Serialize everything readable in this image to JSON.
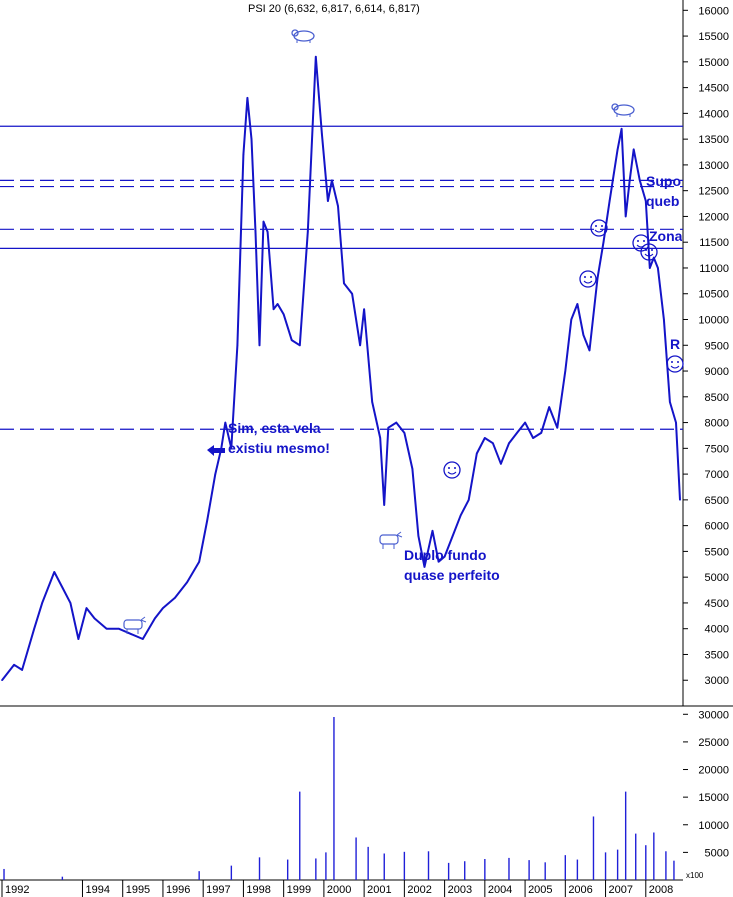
{
  "chart_data": {
    "type": "line",
    "title": "PSI 20 (6,632, 6,817, 6,614, 6,817)",
    "price_axis": {
      "ylim": [
        2500,
        16200
      ],
      "ticks": [
        3000,
        3500,
        4000,
        4500,
        5000,
        5500,
        6000,
        6500,
        7000,
        7500,
        8000,
        8500,
        9000,
        9500,
        10000,
        10500,
        11000,
        11500,
        12000,
        12500,
        13000,
        13500,
        14000,
        14500,
        15000,
        15500,
        16000
      ],
      "tick_labels": [
        "3000",
        "3500",
        "4000",
        "4500",
        "5000",
        "5500",
        "6000",
        "6500",
        "7000",
        "7500",
        "8000",
        "8500",
        "9000",
        "9500",
        "10000",
        "10500",
        "11000",
        "11500",
        "12000",
        "12500",
        "13000",
        "13500",
        "14000",
        "14500",
        "15000",
        "15500",
        "16000"
      ]
    },
    "volume_axis": {
      "ylim": [
        0,
        31500
      ],
      "ticks": [
        5000,
        10000,
        15000,
        20000,
        25000,
        30000
      ],
      "tick_labels": [
        "5000",
        "10000",
        "15000",
        "20000",
        "25000",
        "30000"
      ],
      "unit_label": "x100"
    },
    "x_axis": {
      "range": [
        1992.0,
        2008.9
      ],
      "years": [
        1992,
        1994,
        1995,
        1996,
        1997,
        1998,
        1999,
        2000,
        2001,
        2002,
        2003,
        2004,
        2005,
        2006,
        2007,
        2008
      ],
      "year_labels": [
        "1992",
        "1994",
        "1995",
        "1996",
        "1997",
        "1998",
        "1999",
        "2000",
        "2001",
        "2002",
        "2003",
        "2004",
        "2005",
        "2006",
        "2007",
        "2008"
      ]
    },
    "series": [
      {
        "x": [
          1992.0,
          1992.3,
          1992.5,
          1992.8,
          1993.0,
          1993.3,
          1993.5,
          1993.7,
          1993.9,
          1994.1,
          1994.3,
          1994.6,
          1994.9,
          1995.2,
          1995.5,
          1995.8,
          1996.0,
          1996.3,
          1996.6,
          1996.9,
          1997.1,
          1997.3,
          1997.45,
          1997.55,
          1997.7,
          1997.85,
          1998.0,
          1998.1,
          1998.2,
          1998.3,
          1998.4,
          1998.5,
          1998.6,
          1998.75,
          1998.85,
          1999.0,
          1999.2,
          1999.4,
          1999.6,
          1999.8,
          1999.95,
          2000.1,
          2000.2,
          2000.35,
          2000.5,
          2000.7,
          2000.9,
          2001.0,
          2001.2,
          2001.4,
          2001.5,
          2001.6,
          2001.8,
          2002.0,
          2002.2,
          2002.35,
          2002.5,
          2002.7,
          2002.85,
          2003.0,
          2003.2,
          2003.4,
          2003.6,
          2003.8,
          2004.0,
          2004.2,
          2004.4,
          2004.6,
          2004.8,
          2005.0,
          2005.2,
          2005.4,
          2005.6,
          2005.8,
          2006.0,
          2006.15,
          2006.3,
          2006.45,
          2006.6,
          2006.8,
          2006.95,
          2007.1,
          2007.2,
          2007.3,
          2007.4,
          2007.5,
          2007.6,
          2007.7,
          2007.85,
          2008.0,
          2008.1,
          2008.2,
          2008.3,
          2008.45,
          2008.6,
          2008.75,
          2008.85
        ],
        "values": [
          3000,
          3300,
          3200,
          4000,
          4500,
          5100,
          4800,
          4500,
          3800,
          4400,
          4200,
          4000,
          4000,
          3900,
          3800,
          4200,
          4400,
          4600,
          4900,
          5300,
          6100,
          7000,
          7500,
          8000,
          7500,
          9500,
          13200,
          14300,
          13500,
          11700,
          9500,
          11900,
          11700,
          10200,
          10300,
          10100,
          9600,
          9500,
          11700,
          15100,
          13600,
          12300,
          12700,
          12200,
          10700,
          10500,
          9500,
          10200,
          8400,
          7700,
          6400,
          7900,
          8000,
          7800,
          7100,
          5800,
          5200,
          5900,
          5300,
          5400,
          5800,
          6200,
          6500,
          7400,
          7700,
          7600,
          7200,
          7600,
          7800,
          8000,
          7700,
          7800,
          8300,
          7900,
          9000,
          10000,
          10300,
          9700,
          9400,
          10800,
          11500,
          12300,
          12800,
          13300,
          13700,
          12000,
          12700,
          13300,
          12700,
          12300,
          11000,
          11200,
          11000,
          10000,
          8400,
          8000,
          6500
        ]
      }
    ],
    "volume": {
      "x": [
        1992.05,
        1993.5,
        1996.9,
        1997.7,
        1998.4,
        1999.1,
        1999.4,
        1999.8,
        2000.05,
        2000.25,
        2000.8,
        2001.1,
        2001.5,
        2002.0,
        2002.6,
        2003.1,
        2003.5,
        2004.0,
        2004.6,
        2005.1,
        2005.5,
        2006.0,
        2006.3,
        2006.7,
        2007.0,
        2007.3,
        2007.5,
        2007.75,
        2008.0,
        2008.2,
        2008.5,
        2008.7
      ],
      "values": [
        2000,
        600,
        1600,
        2600,
        4100,
        3700,
        16000,
        3900,
        5000,
        29500,
        7700,
        6000,
        4800,
        5100,
        5200,
        3100,
        3400,
        3800,
        4000,
        3600,
        3200,
        4500,
        3700,
        11500,
        5000,
        5500,
        16000,
        8400,
        6300,
        8600,
        5200,
        3500
      ]
    },
    "horizontal_levels": [
      {
        "value": 13750,
        "style": "solid"
      },
      {
        "value": 12700,
        "style": "dashed"
      },
      {
        "value": 12580,
        "style": "dashed"
      },
      {
        "value": 11750,
        "style": "dashed"
      },
      {
        "value": 11380,
        "style": "solid"
      },
      {
        "value": 7870,
        "style": "dashed"
      }
    ]
  },
  "annotations": {
    "candle_note_line1": "Sim, esta vela",
    "candle_note_line2": "existiu mesmo!",
    "double_bottom_line1": "Duplo fundo",
    "double_bottom_line2": "quase perfeito",
    "right_note_1": "Supo",
    "right_note_2": "queb",
    "right_note_3": "Zona",
    "right_note_4": "R"
  },
  "colors": {
    "line": "#1414c8",
    "volume": "#2020d8",
    "grid": "#000000",
    "annotation": "#1414c8",
    "icon": "#4a5fd0"
  },
  "icons": [
    "bull-icon",
    "bear-icon",
    "smiley-icon"
  ]
}
